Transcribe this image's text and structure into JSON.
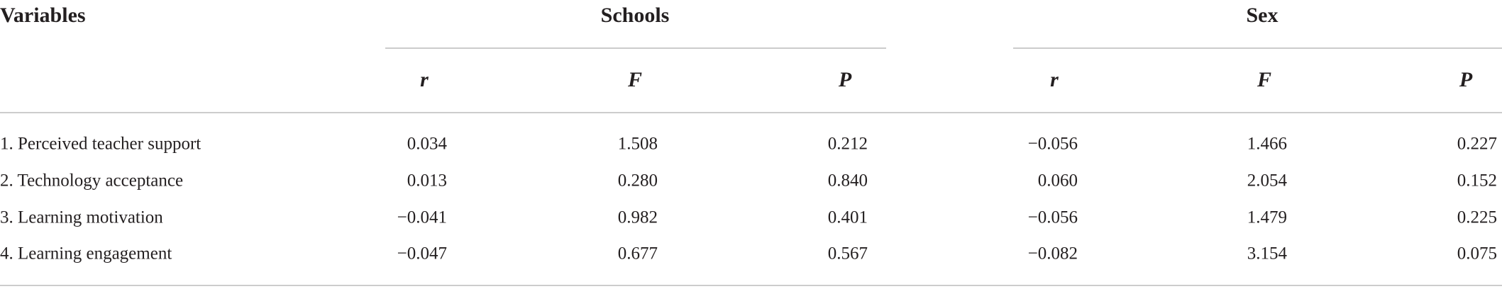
{
  "table": {
    "header": {
      "title": "Variables",
      "groups": [
        "Schools",
        "Sex"
      ],
      "columns": [
        "r",
        "F",
        "P",
        "r",
        "F",
        "P"
      ]
    },
    "rows": [
      [
        "1. Perceived teacher support",
        "0.034",
        "1.508",
        "0.212",
        "−0.056",
        "1.466",
        "0.227"
      ],
      [
        "2. Technology acceptance",
        "0.013",
        "0.280",
        "0.840",
        "0.060",
        "2.054",
        "0.152"
      ],
      [
        "3. Learning motivation",
        "−0.041",
        "0.982",
        "0.401",
        "−0.056",
        "1.479",
        "0.225"
      ],
      [
        "4. Learning engagement",
        "−0.047",
        "0.677",
        "0.567",
        "−0.082",
        "3.154",
        "0.075"
      ]
    ]
  }
}
